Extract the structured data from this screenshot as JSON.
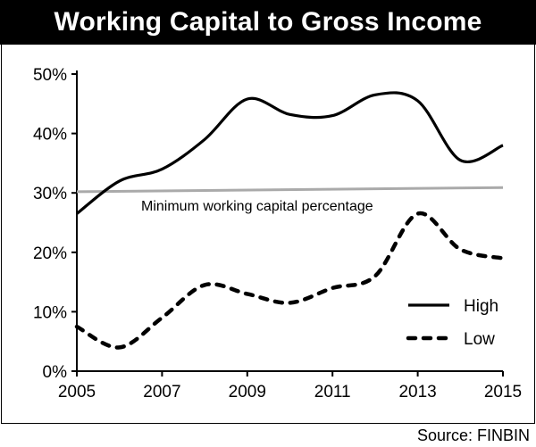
{
  "chart_data": {
    "type": "line",
    "title": "Working Capital to Gross Income",
    "xlabel": "",
    "ylabel": "",
    "x_ticks": [
      "2005",
      "2007",
      "2009",
      "2011",
      "2013",
      "2015"
    ],
    "y_ticks": [
      "0%",
      "10%",
      "20%",
      "30%",
      "40%",
      "50%"
    ],
    "xlim": [
      2005,
      2015
    ],
    "ylim": [
      0,
      50
    ],
    "grid": false,
    "legend_position": "bottom-right",
    "series": [
      {
        "name": "High",
        "style": "solid",
        "color": "#000000",
        "x": [
          2005,
          2006,
          2007,
          2008,
          2009,
          2010,
          2011,
          2012,
          2013,
          2014,
          2015
        ],
        "y": [
          26.5,
          32,
          34,
          39,
          45.8,
          43.2,
          43,
          46.5,
          45.5,
          35.5,
          38
        ]
      },
      {
        "name": "Low",
        "style": "dashed",
        "color": "#000000",
        "x": [
          2005,
          2006,
          2007,
          2008,
          2009,
          2010,
          2011,
          2012,
          2013,
          2014,
          2015
        ],
        "y": [
          7.5,
          4,
          9,
          14.5,
          13,
          11.5,
          14,
          16,
          26.5,
          20.5,
          19
        ]
      }
    ],
    "reference_line": {
      "label": "Minimum working capital percentage",
      "color": "#aaaaaa",
      "x": [
        2005,
        2015
      ],
      "y": [
        30.2,
        30.9
      ]
    },
    "source": "Source: FINBIN"
  }
}
